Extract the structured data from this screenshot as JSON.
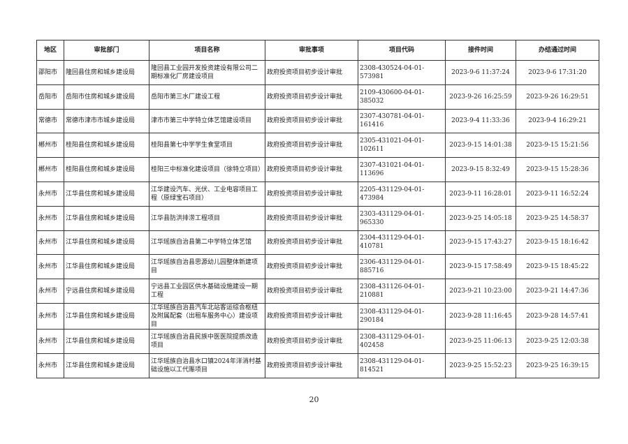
{
  "table": {
    "headers": [
      "地区",
      "审批部门",
      "项目名称",
      "审批事项",
      "项目代码",
      "接件时间",
      "办结通过时间"
    ],
    "rows": [
      [
        "邵阳市",
        "隆回县住房和城乡建设局",
        "隆回县工业园开发投资建设有限公司二期标准化厂房建设项目",
        "政府投资项目初步设计审批",
        "2308-430524-04-01-573981",
        "2023-9-6 11:37:24",
        "2023-9-6 17:31:20"
      ],
      [
        "岳阳市",
        "岳阳市住房和城乡建设局",
        "岳阳市第三水厂建设工程",
        "政府投资项目初步设计审批",
        "2109-430600-04-01-385032",
        "2023-9-26 16:25:59",
        "2023-9-26 16:29:51"
      ],
      [
        "常德市",
        "常德市津市市城乡建设局",
        "津市市第三中学特立体艺馆建设项目",
        "政府投资项目初步设计审批",
        "2307-430781-04-01-161416",
        "2023-9-4 11:33:36",
        "2023-9-4 16:29:21"
      ],
      [
        "郴州市",
        "桂阳县住房和城乡建设局",
        "桂阳县第七中学学生食堂项目",
        "政府投资项目初步设计审批",
        "2305-431021-04-01-102611",
        "2023-9-15 14:01:38",
        "2023-9-15 15:21:56"
      ],
      [
        "郴州市",
        "桂阳县住房和城乡建设局",
        "桂阳三中标准化建设项目（徐特立项目）",
        "政府投资项目初步设计审批",
        "2307-431021-04-01-113696",
        "2023-9-15 8:32:49",
        "2023-9-15 15:28:36"
      ],
      [
        "永州市",
        "江华县住房和城乡建设局",
        "江华建设汽车、光伏、工业电容项目工程（原绿宝石项目）",
        "政府投资项目初步设计审批",
        "2205-431129-04-01-473984",
        "2023-9-11 16:28:01",
        "2023-9-11 16:52:24"
      ],
      [
        "永州市",
        "江华县住房和城乡建设局",
        "江华县防洪排涝工程项目",
        "政府投资项目初步设计审批",
        "2303-431129-04-01-965330",
        "2023-9-25 14:05:18",
        "2023-9-25 14:58:37"
      ],
      [
        "永州市",
        "江华县住房和城乡建设局",
        "江华瑶族自治县第二中学特立体艺馆",
        "政府投资项目初步设计审批",
        "2304-431129-04-01-410781",
        "2023-9-15 17:43:27",
        "2023-9-15 18:16:42"
      ],
      [
        "永州市",
        "江华县住房和城乡建设局",
        "江华瑶族自治县思源幼儿园整体新建项目",
        "政府投资项目初步设计审批",
        "2306-431129-04-01-885716",
        "2023-9-15 17:58:49",
        "2023-9-15 18:45:22"
      ],
      [
        "永州市",
        "宁远县住房和城乡建设局",
        "宁远县工业园区供水基础设施建设一期工程",
        "政府投资项目初步设计审批",
        "2308-431126-04-01-210881",
        "2023-9-21 10:23:00",
        "2023-9-21 14:47:36"
      ],
      [
        "永州市",
        "江华县住房和城乡建设局",
        "江华瑶族自治县汽车北站客运综合枢纽及附属配套（出租车服务中心）建设项目",
        "政府投资项目初步设计审批",
        "2308-431129-04-01-290184",
        "2023-9-28 11:16:45",
        "2023-9-28 14:57:41"
      ],
      [
        "永州市",
        "江华县住房和城乡建设局",
        "江华瑶族自治县民族中医医院提质改造项目",
        "政府投资项目初步设计审批",
        "2308-431129-04-01-402458",
        "2023-9-25 11:06:13",
        "2023-9-25 12:03:38"
      ],
      [
        "永州市",
        "江华县住房和城乡建设局",
        "江华瑶族自治县水口镇2024年洋消村基础设施以工代赈项目",
        "政府投资项目初步设计审批",
        "2308-431129-04-01-814521",
        "2023-9-25 15:52:23",
        "2023-9-25 16:39:15"
      ]
    ]
  },
  "page_number": "20"
}
